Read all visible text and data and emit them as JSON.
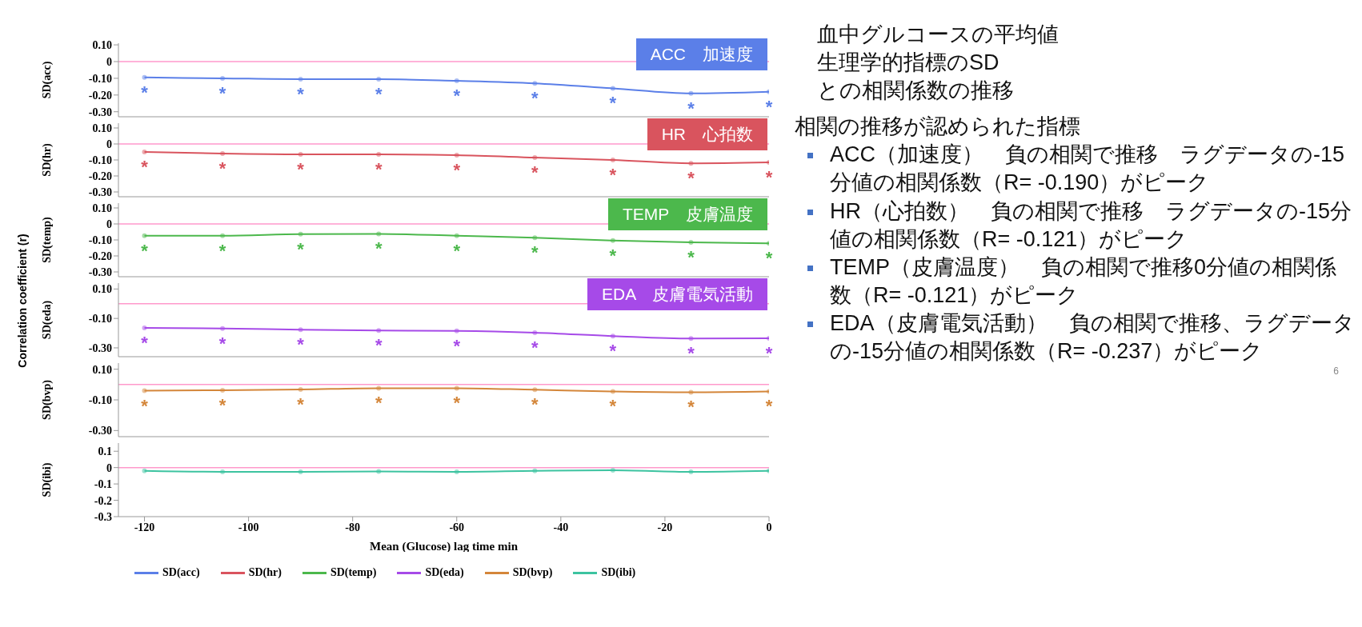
{
  "chart_data": [
    {
      "type": "line",
      "x": [
        -120,
        -105,
        -90,
        -75,
        -60,
        -45,
        -30,
        -15,
        0
      ],
      "xlim": [
        -125,
        0
      ],
      "xticks": [
        -120,
        -100,
        -80,
        -60,
        -40,
        -20,
        0
      ],
      "ylim": [
        -0.33,
        0.11
      ],
      "yticks": [
        {
          "value": 0.1,
          "label": "0.10"
        },
        0,
        {
          "value": -0.1,
          "label": "-0.10"
        },
        {
          "value": -0.2,
          "label": "-0.20"
        },
        {
          "value": -0.3,
          "label": "-0.30"
        }
      ],
      "ylabel": "SD(acc)",
      "tick_labels": "y",
      "marker": "circle",
      "line_style": "solid",
      "legend": "bottom",
      "ref_lines": [
        {
          "axis": "y",
          "value": 0,
          "color": "#ff99cc"
        }
      ],
      "series": [
        {
          "name": "SD(acc)",
          "color": "#5b7fe8",
          "values": [
            -0.095,
            -0.1,
            -0.105,
            -0.105,
            -0.115,
            -0.13,
            -0.16,
            -0.19,
            -0.18
          ],
          "value_labels": [
            "*",
            "*",
            "*",
            "*",
            "*",
            "*",
            "*",
            "*",
            "*"
          ]
        }
      ],
      "annotations": [
        "ACC　加速度",
        "Correlation coefficient (r)"
      ]
    },
    {
      "type": "line",
      "x": [
        -120,
        -105,
        -90,
        -75,
        -60,
        -45,
        -30,
        -15,
        0
      ],
      "xlim": [
        -125,
        0
      ],
      "ylim": [
        -0.33,
        0.13
      ],
      "yticks": [
        {
          "value": 0.1,
          "label": "0.10"
        },
        0,
        {
          "value": -0.1,
          "label": "-0.10"
        },
        {
          "value": -0.2,
          "label": "-0.20"
        },
        {
          "value": -0.3,
          "label": "-0.30"
        }
      ],
      "ylabel": "SD(hr)",
      "tick_labels": "y",
      "marker": "circle",
      "line_style": "solid",
      "legend": "bottom",
      "ref_lines": [
        {
          "axis": "y",
          "value": 0,
          "color": "#ff99cc"
        }
      ],
      "series": [
        {
          "name": "SD(hr)",
          "color": "#d9545e",
          "values": [
            -0.05,
            -0.06,
            -0.065,
            -0.065,
            -0.07,
            -0.085,
            -0.1,
            -0.121,
            -0.115
          ],
          "value_labels": [
            "*",
            "*",
            "*",
            "*",
            "*",
            "*",
            "*",
            "*",
            "*"
          ]
        }
      ],
      "annotations": [
        "HR　心拍数"
      ]
    },
    {
      "type": "line",
      "x": [
        -120,
        -105,
        -90,
        -75,
        -60,
        -45,
        -30,
        -15,
        0
      ],
      "xlim": [
        -125,
        0
      ],
      "ylim": [
        -0.33,
        0.13
      ],
      "yticks": [
        {
          "value": 0.1,
          "label": "0.10"
        },
        0,
        {
          "value": -0.1,
          "label": "-0.10"
        },
        {
          "value": -0.2,
          "label": "-0.20"
        },
        {
          "value": -0.3,
          "label": "-0.30"
        }
      ],
      "ylabel": "SD(temp)",
      "tick_labels": "y",
      "marker": "circle",
      "line_style": "solid",
      "legend": "bottom",
      "ref_lines": [
        {
          "axis": "y",
          "value": 0,
          "color": "#ff99cc"
        }
      ],
      "series": [
        {
          "name": "SD(temp)",
          "color": "#4cb84c",
          "values": [
            -0.074,
            -0.074,
            -0.064,
            -0.062,
            -0.074,
            -0.086,
            -0.104,
            -0.115,
            -0.121
          ],
          "value_labels": [
            "*",
            "*",
            "*",
            "*",
            "*",
            "*",
            "*",
            "*",
            "*"
          ]
        }
      ],
      "annotations": [
        "TEMP　皮膚温度"
      ]
    },
    {
      "type": "line",
      "x": [
        -120,
        -105,
        -90,
        -75,
        -60,
        -45,
        -30,
        -15,
        0
      ],
      "xlim": [
        -125,
        0
      ],
      "ylim": [
        -0.36,
        0.14
      ],
      "yticks": [
        {
          "value": 0.1,
          "label": "0.10"
        },
        {
          "value": -0.1,
          "label": "-0.10"
        },
        {
          "value": -0.3,
          "label": "-0.30"
        }
      ],
      "ylabel": "SD(eda)",
      "tick_labels": "y",
      "marker": "circle",
      "line_style": "solid",
      "legend": "bottom",
      "ref_lines": [
        {
          "axis": "y",
          "value": 0,
          "color": "#ff99cc"
        }
      ],
      "series": [
        {
          "name": "SD(eda)",
          "color": "#a64ae8",
          "values": [
            -0.165,
            -0.168,
            -0.176,
            -0.182,
            -0.185,
            -0.197,
            -0.22,
            -0.237,
            -0.235
          ],
          "value_labels": [
            "*",
            "*",
            "*",
            "*",
            "*",
            "*",
            "*",
            "*",
            "*"
          ]
        }
      ],
      "annotations": [
        "EDA　皮膚電気活動"
      ]
    },
    {
      "type": "line",
      "x": [
        -120,
        -105,
        -90,
        -75,
        -60,
        -45,
        -30,
        -15,
        0
      ],
      "xlim": [
        -125,
        0
      ],
      "ylim": [
        -0.34,
        0.14
      ],
      "yticks": [
        {
          "value": 0.1,
          "label": "0.10"
        },
        {
          "value": -0.1,
          "label": "-0.10"
        },
        {
          "value": -0.3,
          "label": "-0.30"
        }
      ],
      "ylabel": "SD(bvp)",
      "tick_labels": "y",
      "marker": "circle",
      "line_style": "solid",
      "legend": "bottom",
      "ref_lines": [
        {
          "axis": "y",
          "value": 0,
          "color": "#ff99cc"
        }
      ],
      "series": [
        {
          "name": "SD(bvp)",
          "color": "#d4863a",
          "values": [
            -0.04,
            -0.037,
            -0.032,
            -0.024,
            -0.024,
            -0.034,
            -0.045,
            -0.05,
            -0.045
          ],
          "value_labels": [
            "*",
            "*",
            "*",
            "*",
            "*",
            "*",
            "*",
            "*",
            "*"
          ]
        }
      ]
    },
    {
      "type": "line",
      "x": [
        -120,
        -105,
        -90,
        -75,
        -60,
        -45,
        -30,
        -15,
        0
      ],
      "xlim": [
        -125,
        0
      ],
      "xticks": [
        -120,
        -100,
        -80,
        -60,
        -40,
        -20,
        0
      ],
      "ylim": [
        -0.3,
        0.15
      ],
      "yticks": [
        0.1,
        0,
        -0.1,
        -0.2,
        -0.3
      ],
      "ylabel": "SD(ibi)",
      "xlabel": "Mean (Glucose) lag time min",
      "marker": "circle",
      "line_style": "solid",
      "legend": "bottom",
      "ref_lines": [
        {
          "axis": "y",
          "value": 0,
          "color": "#ff99cc"
        }
      ],
      "series": [
        {
          "name": "SD(ibi)",
          "color": "#3cc3a0",
          "values": [
            -0.02,
            -0.026,
            -0.026,
            -0.024,
            -0.026,
            -0.02,
            -0.016,
            -0.026,
            -0.02
          ]
        }
      ]
    },
    {
      "type": "other",
      "title": "血中グルコースの平均値",
      "subtitle": "生理学的指標のSD",
      "annotations": [
        "との相関係数の推移",
        "相関の推移が認められた指標",
        "ACC（加速度）　負の相関で推移　ラグデータの-15分値の相関係数（R= -0.190）がピーク",
        "HR（心拍数）　負の相関で推移　ラグデータの-15分値の相関係数（R= -0.121）がピーク",
        "TEMP（皮膚温度）　負の相関で推移0分値の相関係数（R= -0.121）がピーク",
        "EDA（皮膚電気活動）　負の相関で推移、ラグデータの-15分値の相関係数（R= -0.237）がピーク",
        "6"
      ]
    }
  ]
}
